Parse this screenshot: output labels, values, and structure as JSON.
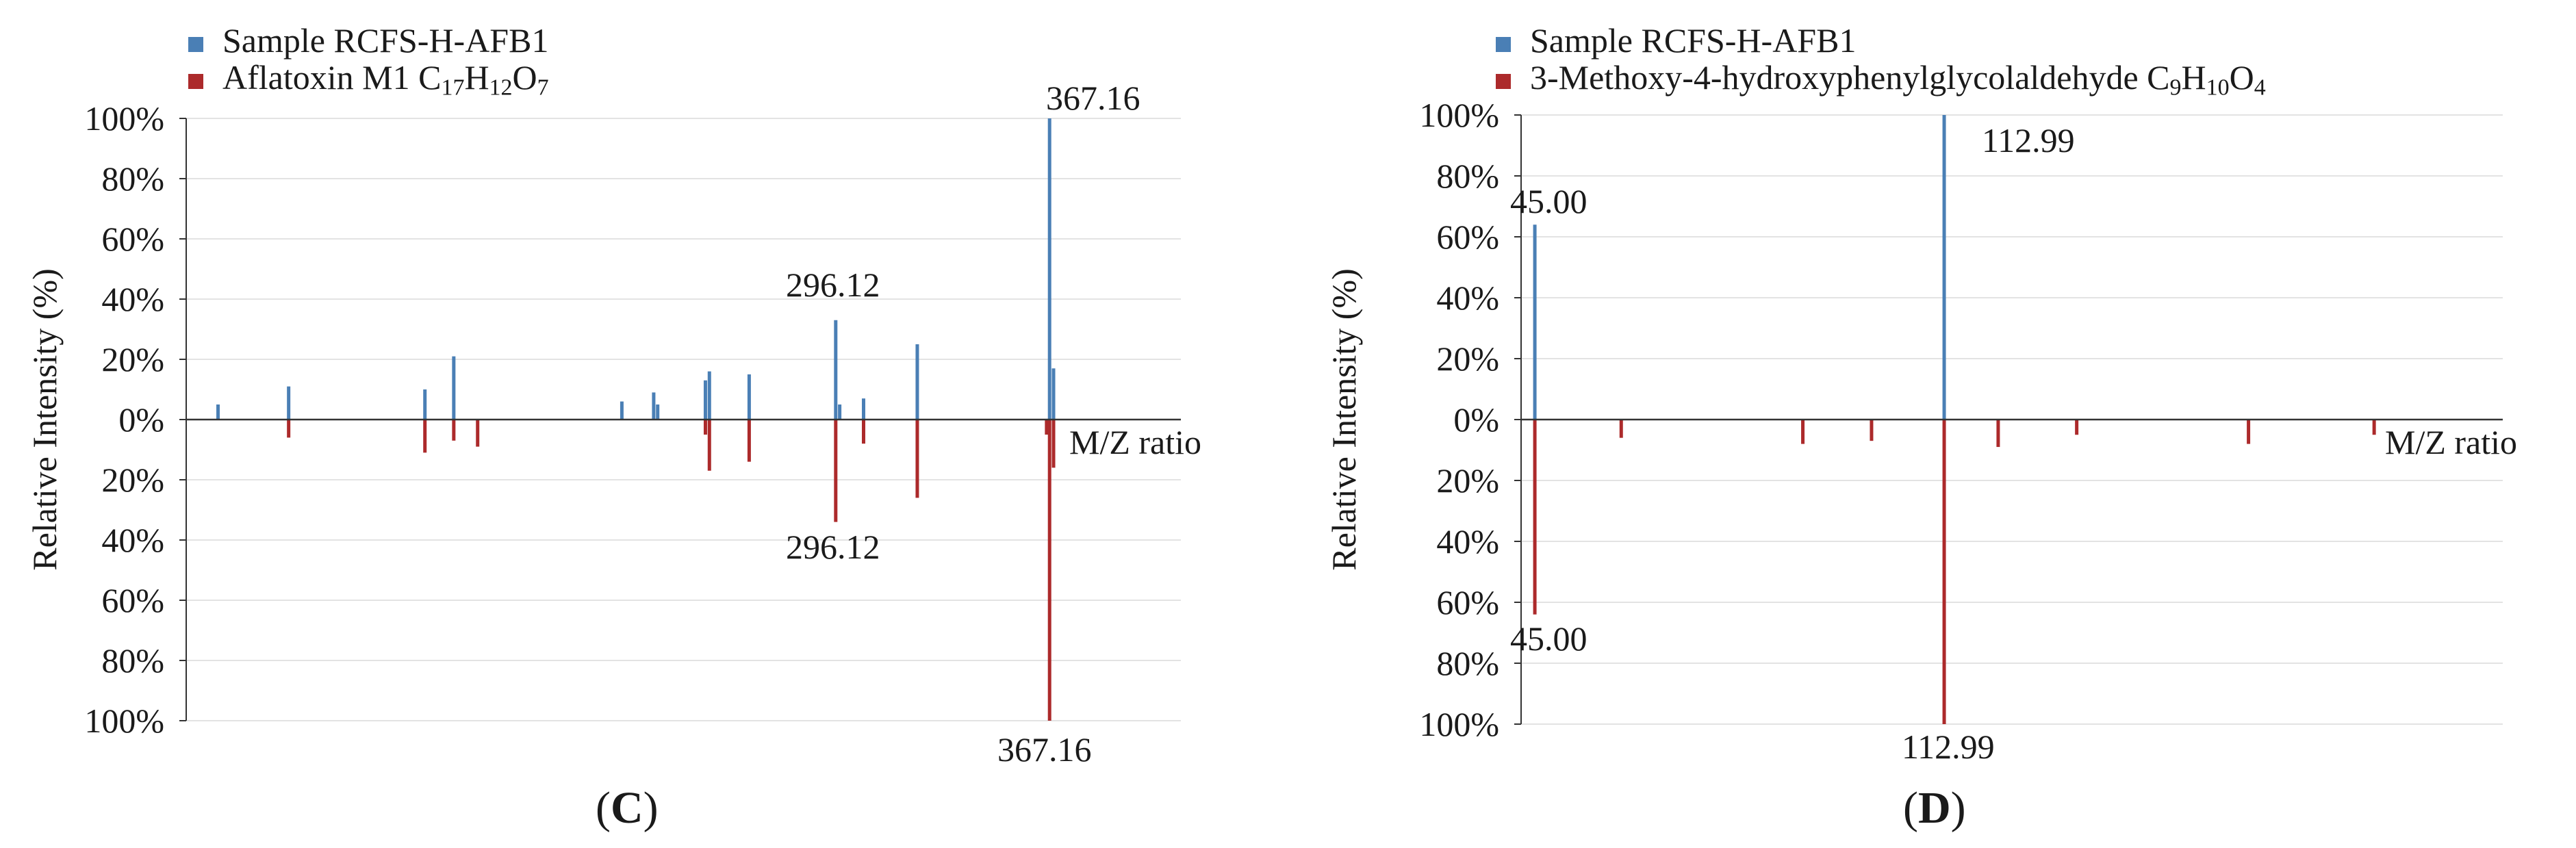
{
  "chart_data": [
    {
      "id": "C",
      "type": "bar",
      "panel_label": "C",
      "legend": [
        {
          "name": "Sample RCFS-H-AFB1",
          "color": "#4a7fb5",
          "parts": [
            {
              "t": "Sample RCFS-H-AFB1"
            }
          ]
        },
        {
          "name": "Aflatoxin M1 C17H12O7",
          "color": "#ac2a2b",
          "parts": [
            {
              "t": "Aflatoxin M1 C"
            },
            {
              "sub": "17"
            },
            {
              "t": "H"
            },
            {
              "sub": "12"
            },
            {
              "t": "O"
            },
            {
              "sub": "7"
            }
          ]
        }
      ],
      "ylabel": "Relative Intensity (%)",
      "xlabel": "M/Z ratio",
      "yticks": [
        "100%",
        "80%",
        "60%",
        "40%",
        "20%",
        "0%",
        "20%",
        "40%",
        "60%",
        "80%",
        "100%"
      ],
      "ylim": [
        -100,
        100
      ],
      "xlim": [
        0,
        100
      ],
      "series": [
        {
          "name": "Sample RCFS-H-AFB1",
          "direction": "up",
          "color": "#4a7fb5",
          "points": [
            [
              3.2,
              5
            ],
            [
              10.3,
              11
            ],
            [
              24,
              10
            ],
            [
              26.9,
              21
            ],
            [
              43.8,
              6
            ],
            [
              47,
              9
            ],
            [
              47.4,
              5
            ],
            [
              52.2,
              13
            ],
            [
              52.6,
              16
            ],
            [
              56.6,
              15
            ],
            [
              65.3,
              33
            ],
            [
              65.7,
              5
            ],
            [
              68.1,
              7
            ],
            [
              73.5,
              25
            ],
            [
              86.8,
              100
            ],
            [
              87.2,
              17
            ]
          ]
        },
        {
          "name": "Aflatoxin M1 C17H12O7",
          "direction": "down",
          "color": "#ac2a2b",
          "points": [
            [
              10.3,
              6
            ],
            [
              24,
              11
            ],
            [
              26.9,
              7
            ],
            [
              29.3,
              9
            ],
            [
              52.2,
              5
            ],
            [
              52.6,
              17
            ],
            [
              56.6,
              14
            ],
            [
              65.3,
              34
            ],
            [
              68.1,
              8
            ],
            [
              73.5,
              26
            ],
            [
              86.5,
              5
            ],
            [
              86.8,
              100
            ],
            [
              87.2,
              16
            ]
          ]
        }
      ],
      "annotations": [
        {
          "text": "367.16",
          "x": 86.8,
          "y": 100
        },
        {
          "text": "296.12",
          "x": 65.3,
          "y": 33
        },
        {
          "text": "296.12",
          "x": 65.3,
          "y": -34
        },
        {
          "text": "367.16",
          "x": 86.8,
          "y": -100
        }
      ]
    },
    {
      "id": "D",
      "type": "bar",
      "panel_label": "D",
      "legend": [
        {
          "name": "Sample RCFS-H-AFB1",
          "color": "#4a7fb5",
          "parts": [
            {
              "t": "Sample RCFS-H-AFB1"
            }
          ]
        },
        {
          "name": "3-Methoxy-4-hydroxyphenylglycolaldehyde C9H10O4",
          "color": "#ac2a2b",
          "parts": [
            {
              "t": "3-Methoxy-4-hydroxyphenylglycolaldehyde C"
            },
            {
              "sub": "9"
            },
            {
              "t": "H"
            },
            {
              "sub": "10"
            },
            {
              "t": "O"
            },
            {
              "sub": "4"
            }
          ]
        }
      ],
      "ylabel": "Relative Intensity (%)",
      "xlabel": "M/Z ratio",
      "yticks": [
        "100%",
        "80%",
        "60%",
        "40%",
        "20%",
        "0%",
        "20%",
        "40%",
        "60%",
        "80%",
        "100%"
      ],
      "ylim": [
        -100,
        100
      ],
      "xlim": [
        0,
        100
      ],
      "series": [
        {
          "name": "Sample RCFS-H-AFB1",
          "direction": "up",
          "color": "#4a7fb5",
          "points": [
            [
              1.4,
              64
            ],
            [
              43.1,
              100
            ]
          ]
        },
        {
          "name": "3-Methoxy-4-hydroxyphenylglycolaldehyde C9H10O4",
          "direction": "down",
          "color": "#ac2a2b",
          "points": [
            [
              1.4,
              64
            ],
            [
              10.2,
              6
            ],
            [
              28.7,
              8
            ],
            [
              35.7,
              7
            ],
            [
              43.1,
              100
            ],
            [
              48.6,
              9
            ],
            [
              56.6,
              5
            ],
            [
              74.1,
              8
            ],
            [
              86.9,
              5
            ]
          ]
        }
      ],
      "annotations": [
        {
          "text": "45.00",
          "x": 1.4,
          "y": 64
        },
        {
          "text": "112.99",
          "x": 43.1,
          "y": 100
        },
        {
          "text": "45.00",
          "x": 1.4,
          "y": -64
        },
        {
          "text": "112.99",
          "x": 43.1,
          "y": -100
        }
      ]
    }
  ]
}
